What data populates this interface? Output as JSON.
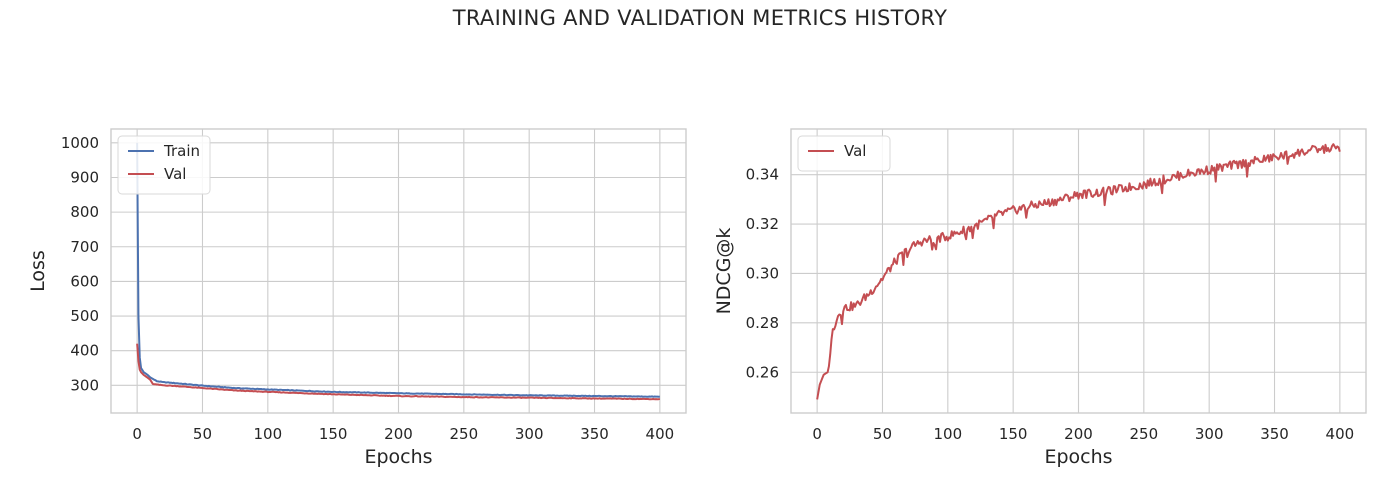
{
  "figure": {
    "suptitle": "TRAINING AND VALIDATION METRICS HISTORY"
  },
  "colors": {
    "train": "#4c72b0",
    "val": "#c44e52",
    "grid": "#cccccc",
    "frame": "#cccccc",
    "text": "#262626"
  },
  "chart_data": [
    {
      "type": "line",
      "title": "",
      "xlabel": "Epochs",
      "ylabel": "Loss",
      "xlim": [
        -20,
        420
      ],
      "ylim": [
        220,
        1040
      ],
      "xticks": [
        0,
        50,
        100,
        150,
        200,
        250,
        300,
        350,
        400
      ],
      "yticks": [
        300,
        400,
        500,
        600,
        700,
        800,
        900,
        1000
      ],
      "grid": true,
      "legend": "upper-left",
      "series": [
        {
          "name": "Train",
          "color": "#4c72b0",
          "x": [
            0,
            1,
            2,
            3,
            5,
            8,
            10,
            15,
            20,
            30,
            50,
            75,
            100,
            150,
            200,
            250,
            300,
            350,
            400
          ],
          "y": [
            1000,
            500,
            380,
            350,
            338,
            330,
            323,
            312,
            309,
            306,
            299,
            292,
            288,
            281,
            277,
            274,
            271,
            269,
            267
          ]
        },
        {
          "name": "Val",
          "color": "#c44e52",
          "x": [
            0,
            1,
            2,
            3,
            5,
            8,
            10,
            12,
            15,
            20,
            30,
            50,
            75,
            100,
            150,
            200,
            250,
            300,
            350,
            400
          ],
          "y": [
            420,
            370,
            345,
            338,
            330,
            322,
            316,
            304,
            302,
            300,
            298,
            292,
            285,
            281,
            274,
            269,
            266,
            264,
            262,
            260
          ]
        }
      ]
    },
    {
      "type": "line",
      "title": "",
      "xlabel": "Epochs",
      "ylabel": "NDCG@k",
      "xlim": [
        -20,
        420
      ],
      "ylim": [
        0.2435,
        0.3585
      ],
      "xticks": [
        0,
        50,
        100,
        150,
        200,
        250,
        300,
        350,
        400
      ],
      "yticks": [
        0.26,
        0.28,
        0.3,
        0.32,
        0.34
      ],
      "ytick_labels": [
        "0.26",
        "0.28",
        "0.30",
        "0.32",
        "0.34"
      ],
      "grid": true,
      "legend": "upper-left",
      "series": [
        {
          "name": "Val",
          "color": "#c44e52",
          "x": [
            0,
            2,
            5,
            8,
            10,
            12,
            15,
            20,
            30,
            40,
            50,
            60,
            70,
            80,
            100,
            120,
            140,
            160,
            180,
            200,
            220,
            250,
            280,
            300,
            320,
            350,
            380,
            400
          ],
          "y": [
            0.249,
            0.255,
            0.259,
            0.26,
            0.268,
            0.277,
            0.282,
            0.286,
            0.287,
            0.292,
            0.298,
            0.305,
            0.31,
            0.313,
            0.315,
            0.319,
            0.324,
            0.327,
            0.329,
            0.332,
            0.333,
            0.336,
            0.34,
            0.342,
            0.344,
            0.347,
            0.35,
            0.351
          ]
        }
      ]
    }
  ]
}
